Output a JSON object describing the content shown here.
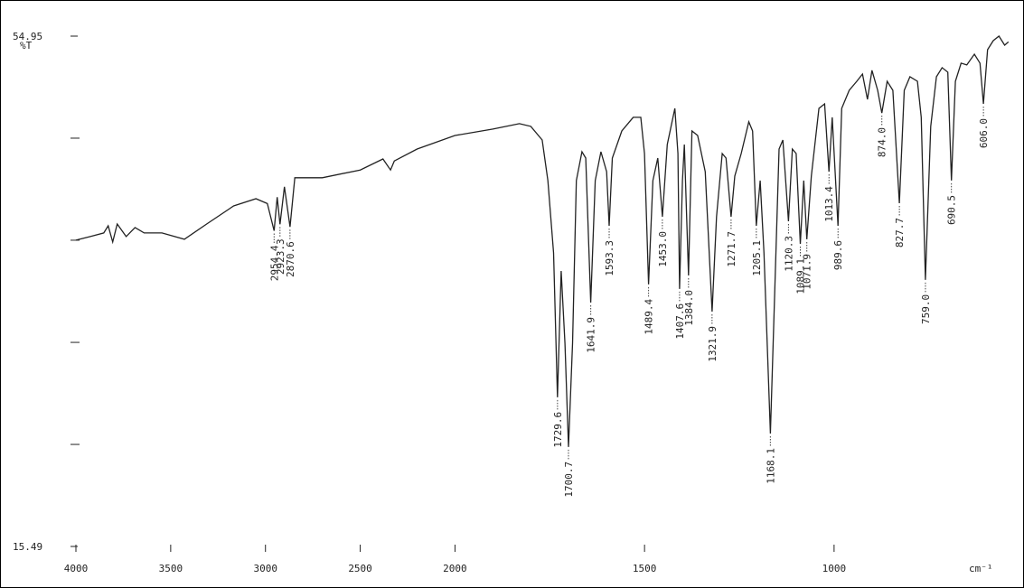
{
  "chart_data": {
    "type": "line",
    "y_label": "%T",
    "x_label": "cm⁻¹",
    "xlim": [
      4000,
      530
    ],
    "x_expansion": {
      "below": 2000,
      "factor": 2
    },
    "xticks": [
      4000,
      3500,
      3000,
      2500,
      2000,
      1500,
      1000
    ],
    "ylim": [
      15.49,
      54.95
    ],
    "yticks": [
      15.49,
      54.95
    ],
    "y_minor_ticks": [
      23.38,
      31.27,
      39.17,
      47.06
    ],
    "color": "#222222",
    "x": [
      4000,
      3924,
      3853,
      3830,
      3806,
      3782,
      3735,
      3688,
      3640,
      3546,
      3428,
      3310,
      3168,
      3050,
      2990,
      2954.4,
      2938,
      2923.3,
      2900,
      2870.6,
      2845,
      2700,
      2500,
      2380,
      2340,
      2320,
      2200,
      2000,
      1900,
      1830,
      1800,
      1770,
      1755,
      1740,
      1729.6,
      1720,
      1710,
      1700.7,
      1690,
      1680,
      1665,
      1655,
      1641.9,
      1630,
      1615,
      1600,
      1593.3,
      1585,
      1560,
      1530,
      1510,
      1500,
      1489.4,
      1478,
      1465,
      1453,
      1440,
      1420,
      1412,
      1407.6,
      1400,
      1395,
      1384,
      1375,
      1360,
      1340,
      1321.9,
      1310,
      1295,
      1285,
      1271.7,
      1262,
      1245,
      1225,
      1215,
      1205.1,
      1195,
      1185,
      1168.1,
      1155,
      1145,
      1135,
      1120.3,
      1110,
      1100,
      1089.1,
      1080,
      1071.9,
      1060,
      1040,
      1025,
      1013.4,
      1005,
      989.6,
      980,
      960,
      940,
      925,
      912,
      900,
      885,
      874,
      860,
      845,
      827.7,
      815,
      800,
      780,
      770,
      759,
      745,
      730,
      715,
      700,
      690.5,
      680,
      665,
      650,
      630,
      615,
      606,
      595,
      580,
      565,
      550,
      540
    ],
    "values": [
      39.17,
      39.45,
      39.73,
      40.28,
      39.03,
      40.42,
      39.45,
      40.15,
      39.73,
      39.73,
      39.24,
      40.42,
      41.82,
      42.38,
      42.0,
      39.9,
      42.5,
      40.4,
      43.3,
      40.2,
      44.0,
      44.0,
      44.6,
      45.45,
      44.6,
      45.3,
      46.22,
      47.27,
      47.76,
      48.18,
      47.97,
      46.92,
      43.78,
      38.19,
      27.02,
      36.79,
      31.2,
      23.18,
      31.2,
      43.78,
      46.01,
      45.52,
      34.35,
      43.78,
      46.01,
      44.47,
      40.28,
      45.52,
      47.62,
      48.67,
      48.67,
      45.87,
      35.75,
      43.78,
      45.52,
      40.98,
      46.57,
      49.36,
      45.87,
      35.4,
      43.78,
      46.57,
      36.44,
      47.62,
      47.27,
      44.47,
      33.65,
      40.98,
      45.87,
      45.52,
      40.98,
      44.13,
      45.87,
      48.32,
      47.62,
      40.28,
      43.78,
      38.19,
      24.22,
      36.79,
      46.22,
      46.92,
      40.63,
      46.22,
      45.87,
      38.89,
      43.78,
      39.24,
      44.13,
      49.36,
      49.71,
      44.47,
      48.67,
      40.28,
      49.36,
      50.76,
      51.46,
      52.02,
      50.06,
      52.3,
      50.76,
      49.01,
      51.46,
      50.76,
      42.03,
      50.76,
      51.81,
      51.46,
      48.67,
      36.1,
      47.97,
      51.81,
      52.51,
      52.16,
      43.78,
      51.46,
      52.86,
      52.72,
      53.55,
      52.86,
      49.71,
      53.9,
      54.6,
      54.95,
      54.25,
      54.5
    ],
    "peaks": [
      {
        "value": 2954.4,
        "label": "2954.4"
      },
      {
        "value": 2923.3,
        "label": "2923.3"
      },
      {
        "value": 2870.6,
        "label": "2870.6"
      },
      {
        "value": 1729.6,
        "label": "1729.6"
      },
      {
        "value": 1700.7,
        "label": "1700.7"
      },
      {
        "value": 1641.9,
        "label": "1641.9"
      },
      {
        "value": 1593.3,
        "label": "1593.3"
      },
      {
        "value": 1489.4,
        "label": "1489.4"
      },
      {
        "value": 1453,
        "label": "1453.0"
      },
      {
        "value": 1407.6,
        "label": "1407.6"
      },
      {
        "value": 1384,
        "label": "1384.0"
      },
      {
        "value": 1321.9,
        "label": "1321.9"
      },
      {
        "value": 1271.7,
        "label": "1271.7"
      },
      {
        "value": 1205.1,
        "label": "1205.1"
      },
      {
        "value": 1168.1,
        "label": "1168.1"
      },
      {
        "value": 1120.3,
        "label": "1120.3"
      },
      {
        "value": 1089.1,
        "label": "1089.1"
      },
      {
        "value": 1071.9,
        "label": "1071.9"
      },
      {
        "value": 1013.4,
        "label": "1013.4"
      },
      {
        "value": 989.6,
        "label": "989.6"
      },
      {
        "value": 874,
        "label": "874.0"
      },
      {
        "value": 827.7,
        "label": "827.7"
      },
      {
        "value": 759,
        "label": "759.0"
      },
      {
        "value": 690.5,
        "label": "690.5"
      },
      {
        "value": 606,
        "label": "606.0"
      }
    ]
  }
}
